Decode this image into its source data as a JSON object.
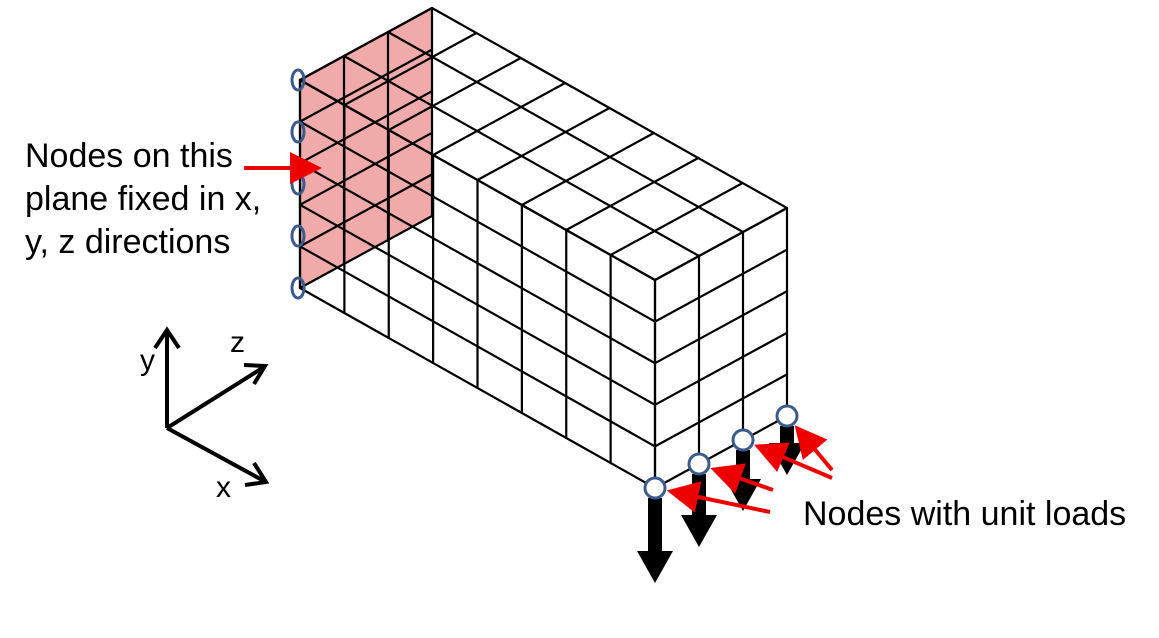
{
  "diagram": {
    "fixed_label_lines": [
      "Nodes on this",
      "plane fixed in x,",
      "y, z directions"
    ],
    "loads_label": "Nodes with unit loads",
    "axis_labels": {
      "x": "x",
      "y": "y",
      "z": "z"
    },
    "mesh": {
      "divisions_x": 8,
      "divisions_y": 5,
      "divisions_z": 3
    },
    "fixed_node_count": 5,
    "loaded_node_count": 4,
    "colors": {
      "fixed_plane": "#f0aaaa",
      "mesh_line": "#000000",
      "annotation_arrow": "#ee0000",
      "node_marker": "#3c5a8c",
      "load_arrow": "#000000"
    }
  }
}
